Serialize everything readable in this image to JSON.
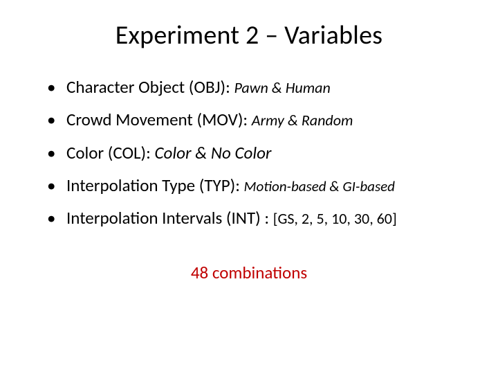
{
  "title": "Experiment 2 – Variables",
  "title_fontsize": 38,
  "background_color": "#ffffff",
  "text_color": "#000000",
  "accent_color": "#c00000",
  "bullets": [
    {
      "label": "Character Object (OBJ): ",
      "values": "Pawn & Human",
      "values_fontsize": 22,
      "values_style": "italic"
    },
    {
      "label": "Crowd Movement (MOV): ",
      "values": "Army & Random",
      "values_fontsize": 22,
      "values_style": "italic"
    },
    {
      "label": "Color (COL): ",
      "values": "Color & No Color",
      "values_fontsize": 25,
      "values_style": "italic"
    },
    {
      "label": "Interpolation Type (TYP): ",
      "values": "Motion-based & GI-based",
      "values_fontsize": 21,
      "values_style": "italic"
    },
    {
      "label": "Interpolation Intervals (INT) : ",
      "values": "[GS, 2, 5, 10, 30, 60]",
      "values_fontsize": 22,
      "values_style": "normal"
    }
  ],
  "footer_prefix": "48 ",
  "footer_rest": "combinations"
}
